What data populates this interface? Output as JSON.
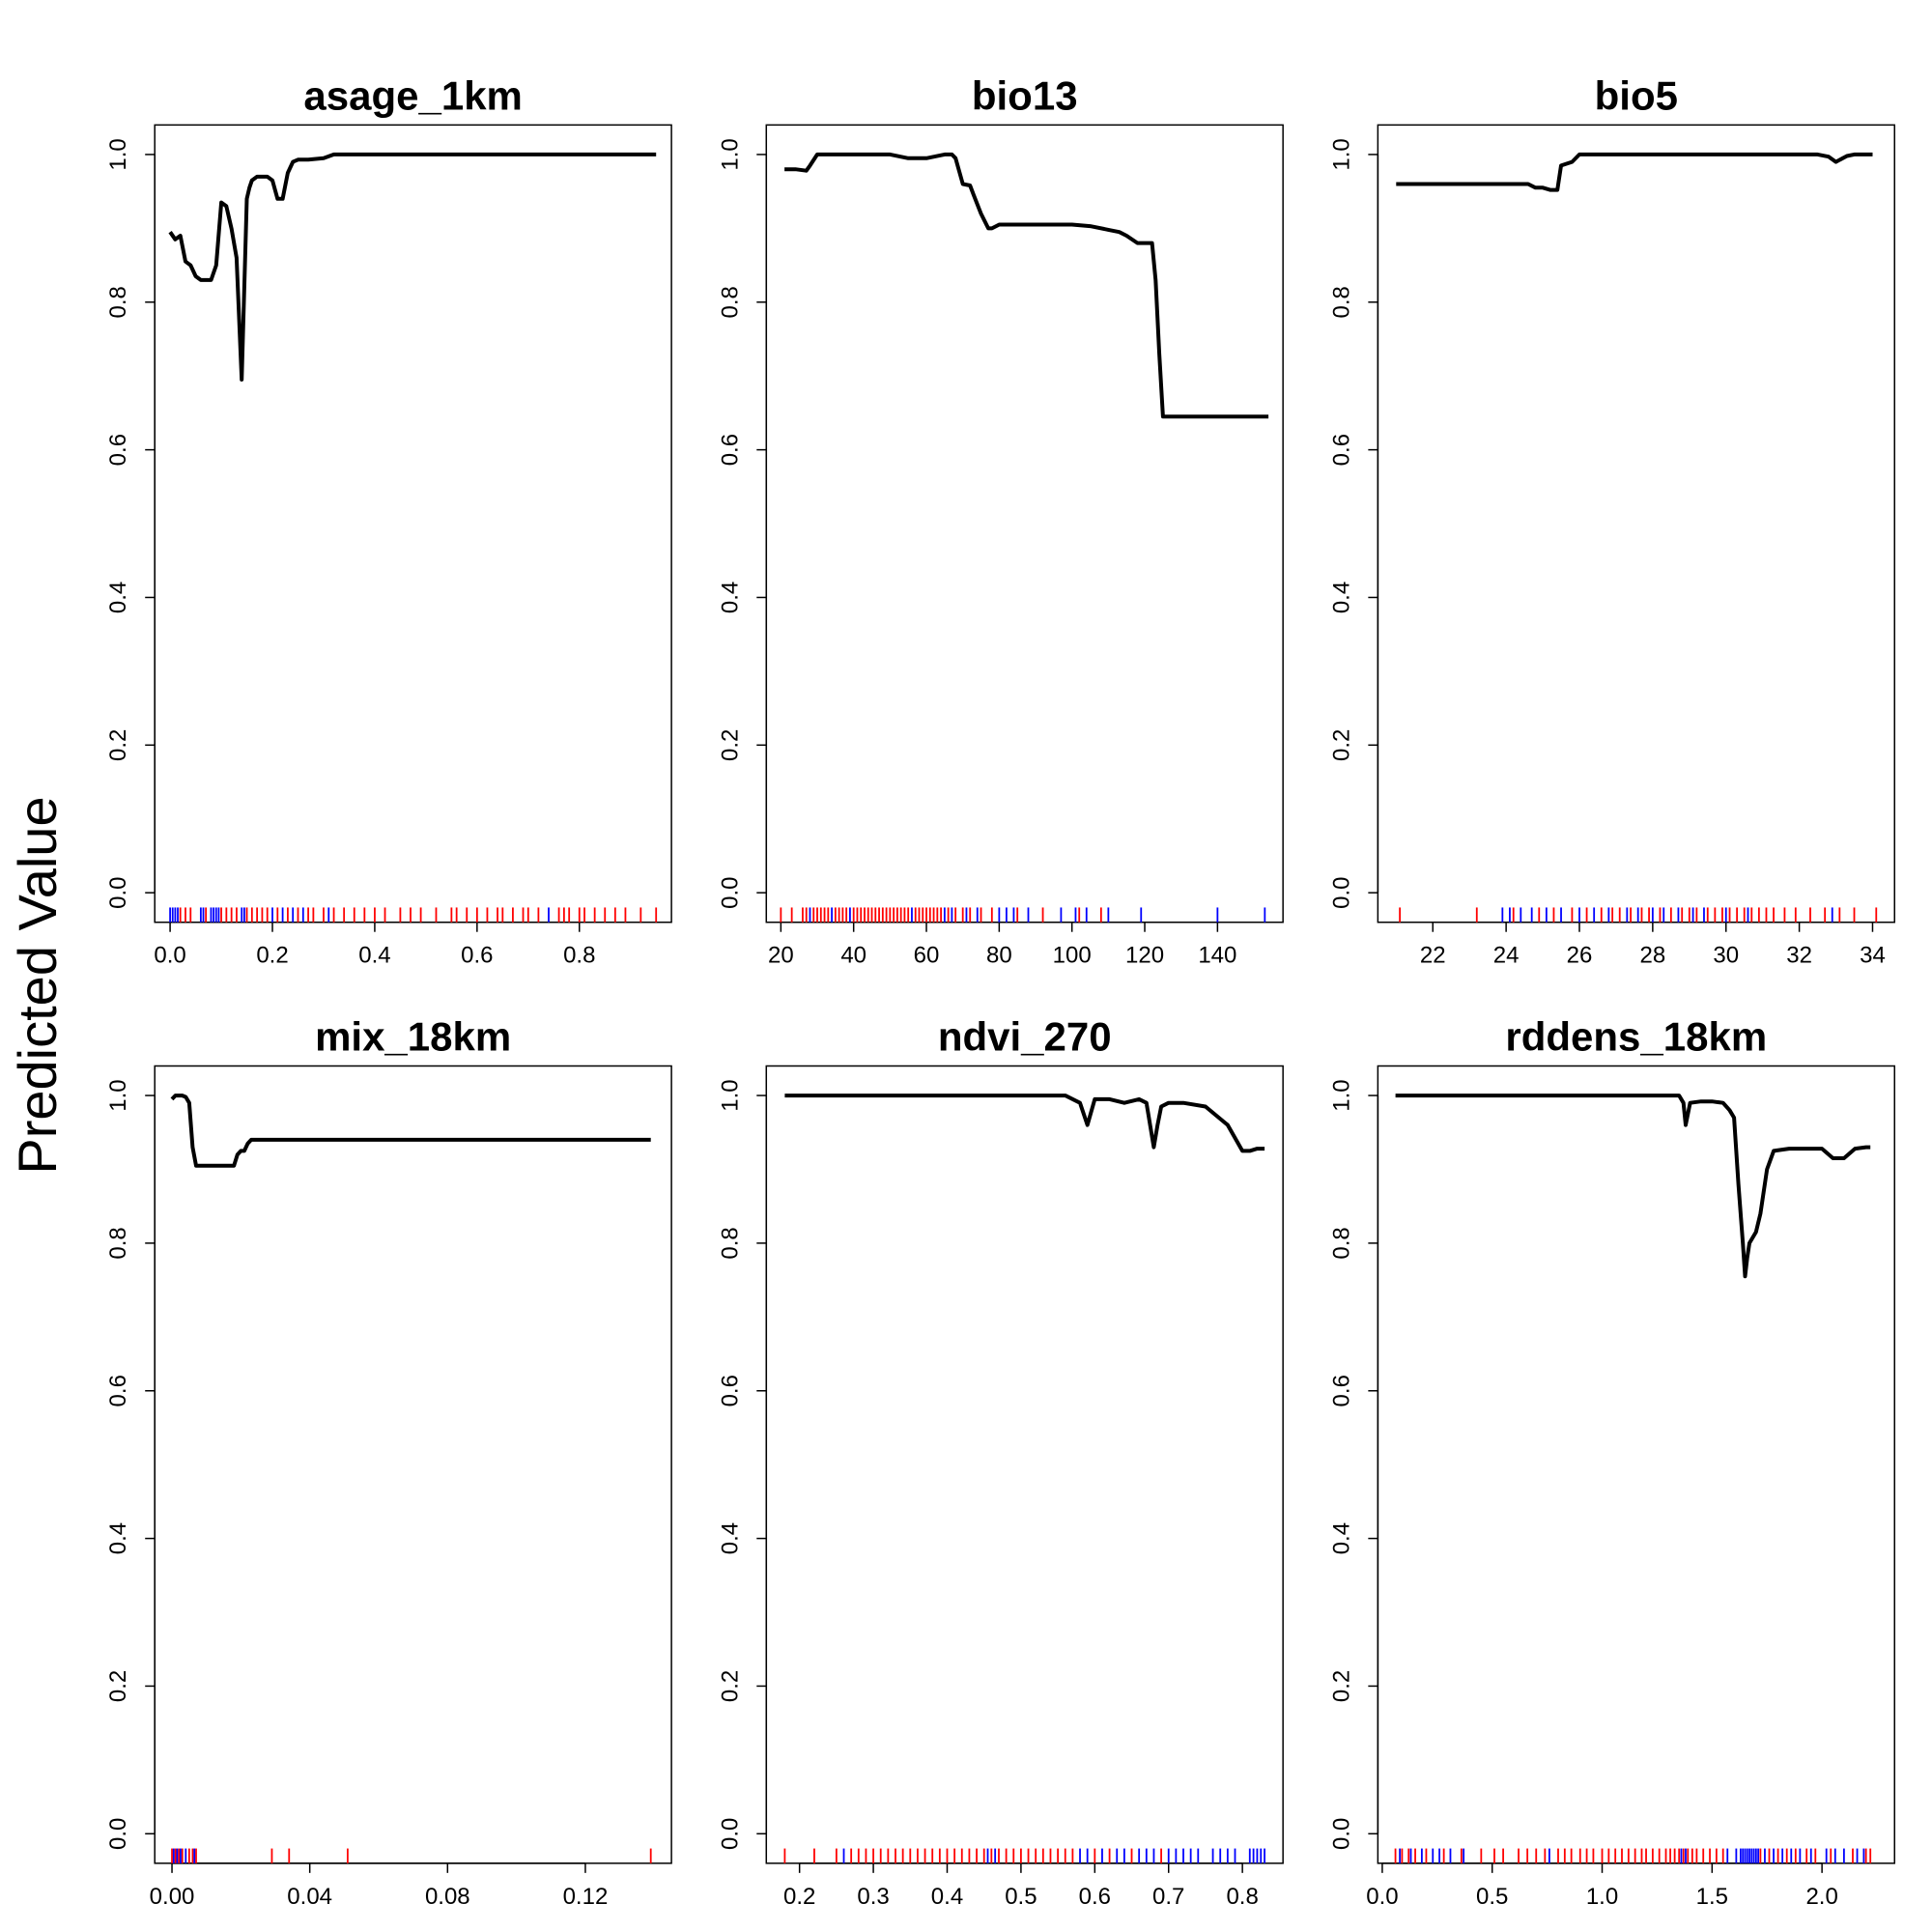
{
  "figure": {
    "ylabel": "Predicted Value"
  },
  "colors": {
    "curve": "#000000",
    "rug_presence": "#ff0000",
    "rug_absence": "#0000ff"
  },
  "chart_data": [
    {
      "type": "line",
      "title": "asage_1km",
      "xlim": [
        -0.03,
        0.98
      ],
      "ylim": [
        -0.04,
        1.04
      ],
      "xticks": [
        0.0,
        0.2,
        0.4,
        0.6,
        0.8
      ],
      "xtick_labels": [
        "0.0",
        "0.2",
        "0.4",
        "0.6",
        "0.8"
      ],
      "yticks": [
        0.0,
        0.2,
        0.4,
        0.6,
        0.8,
        1.0
      ],
      "ytick_labels": [
        "0.0",
        "0.2",
        "0.4",
        "0.6",
        "0.8",
        "1.0"
      ],
      "series": [
        {
          "x": [
            0.0,
            0.01,
            0.02,
            0.03,
            0.04,
            0.05,
            0.06,
            0.07,
            0.08,
            0.09,
            0.1,
            0.11,
            0.12,
            0.13,
            0.14,
            0.15,
            0.155,
            0.16,
            0.17,
            0.18,
            0.19,
            0.2,
            0.21,
            0.22,
            0.23,
            0.24,
            0.25,
            0.27,
            0.3,
            0.32,
            0.35,
            0.4,
            0.5,
            0.6,
            0.7,
            0.8,
            0.95
          ],
          "y": [
            0.895,
            0.885,
            0.89,
            0.855,
            0.85,
            0.835,
            0.83,
            0.83,
            0.83,
            0.85,
            0.935,
            0.93,
            0.9,
            0.86,
            0.695,
            0.94,
            0.955,
            0.965,
            0.97,
            0.97,
            0.97,
            0.965,
            0.94,
            0.94,
            0.975,
            0.99,
            0.993,
            0.993,
            0.995,
            1.0,
            1.0,
            1.0,
            1.0,
            1.0,
            1.0,
            1.0,
            1.0
          ]
        }
      ],
      "rug_red": [
        0.02,
        0.03,
        0.04,
        0.07,
        0.1,
        0.11,
        0.12,
        0.13,
        0.15,
        0.16,
        0.17,
        0.18,
        0.19,
        0.21,
        0.23,
        0.25,
        0.27,
        0.28,
        0.3,
        0.32,
        0.34,
        0.36,
        0.38,
        0.4,
        0.42,
        0.45,
        0.47,
        0.49,
        0.52,
        0.55,
        0.56,
        0.58,
        0.6,
        0.62,
        0.64,
        0.65,
        0.67,
        0.69,
        0.7,
        0.72,
        0.76,
        0.77,
        0.78,
        0.8,
        0.81,
        0.83,
        0.85,
        0.87,
        0.89,
        0.92,
        0.95
      ],
      "rug_blue": [
        0.0,
        0.005,
        0.01,
        0.015,
        0.06,
        0.065,
        0.08,
        0.085,
        0.09,
        0.095,
        0.14,
        0.145,
        0.2,
        0.22,
        0.24,
        0.26,
        0.31,
        0.74
      ]
    },
    {
      "type": "line",
      "title": "bio13",
      "xlim": [
        16,
        158
      ],
      "ylim": [
        -0.04,
        1.04
      ],
      "xticks": [
        20,
        40,
        60,
        80,
        100,
        120,
        140
      ],
      "xtick_labels": [
        "20",
        "40",
        "60",
        "80",
        "100",
        "120",
        "140"
      ],
      "yticks": [
        0.0,
        0.2,
        0.4,
        0.6,
        0.8,
        1.0
      ],
      "ytick_labels": [
        "0.0",
        "0.2",
        "0.4",
        "0.6",
        "0.8",
        "1.0"
      ],
      "series": [
        {
          "x": [
            21,
            24,
            27,
            28,
            30,
            35,
            40,
            45,
            50,
            55,
            60,
            65,
            67,
            68,
            70,
            72,
            73,
            75,
            77,
            78,
            80,
            85,
            90,
            95,
            100,
            105,
            110,
            113,
            115,
            118,
            120,
            122,
            123,
            124,
            125,
            130,
            140,
            150,
            154
          ],
          "y": [
            0.98,
            0.98,
            0.978,
            0.985,
            1.0,
            1.0,
            1.0,
            1.0,
            1.0,
            0.995,
            0.995,
            1.0,
            1.0,
            0.995,
            0.96,
            0.958,
            0.945,
            0.92,
            0.9,
            0.9,
            0.905,
            0.905,
            0.905,
            0.905,
            0.905,
            0.903,
            0.898,
            0.895,
            0.89,
            0.88,
            0.88,
            0.88,
            0.83,
            0.73,
            0.645,
            0.645,
            0.645,
            0.645,
            0.645
          ]
        }
      ],
      "rug_red": [
        20,
        23,
        26,
        27,
        29,
        30,
        31,
        32,
        33,
        35,
        36,
        37,
        38,
        40,
        41,
        42,
        43,
        44,
        45,
        46,
        47,
        48,
        49,
        50,
        51,
        52,
        53,
        54,
        55,
        57,
        58,
        59,
        60,
        61,
        62,
        63,
        64,
        66,
        68,
        70,
        72,
        75,
        78,
        85,
        92,
        102,
        108
      ],
      "rug_blue": [
        28,
        34,
        39,
        56,
        65,
        67,
        71,
        74,
        80,
        82,
        84,
        88,
        97,
        101,
        104,
        110,
        119,
        140,
        153
      ]
    },
    {
      "type": "line",
      "title": "bio5",
      "xlim": [
        20.5,
        34.6
      ],
      "ylim": [
        -0.04,
        1.04
      ],
      "xticks": [
        22,
        24,
        26,
        28,
        30,
        32,
        34
      ],
      "xtick_labels": [
        "22",
        "24",
        "26",
        "28",
        "30",
        "32",
        "34"
      ],
      "yticks": [
        0.0,
        0.2,
        0.4,
        0.6,
        0.8,
        1.0
      ],
      "ytick_labels": [
        "0.0",
        "0.2",
        "0.4",
        "0.6",
        "0.8",
        "1.0"
      ],
      "series": [
        {
          "x": [
            21.0,
            22.0,
            23.0,
            24.0,
            24.6,
            24.8,
            25.0,
            25.2,
            25.4,
            25.5,
            25.8,
            26.0,
            26.5,
            27.0,
            28.0,
            29.0,
            30.0,
            31.0,
            32.0,
            32.5,
            32.8,
            33.0,
            33.3,
            33.5,
            34.0
          ],
          "y": [
            0.96,
            0.96,
            0.96,
            0.96,
            0.96,
            0.955,
            0.955,
            0.952,
            0.952,
            0.985,
            0.99,
            1.0,
            1.0,
            1.0,
            1.0,
            1.0,
            1.0,
            1.0,
            1.0,
            1.0,
            0.997,
            0.99,
            0.998,
            1.0,
            1.0
          ]
        }
      ],
      "rug_red": [
        21.1,
        23.2,
        24.2,
        24.9,
        25.3,
        25.8,
        26.2,
        26.6,
        26.9,
        27.1,
        27.4,
        27.7,
        27.9,
        28.2,
        28.5,
        28.8,
        29.0,
        29.2,
        29.5,
        29.7,
        29.9,
        30.1,
        30.3,
        30.5,
        30.7,
        30.9,
        31.1,
        31.3,
        31.6,
        31.9,
        32.3,
        32.7,
        33.1,
        33.5,
        34.1
      ],
      "rug_blue": [
        23.9,
        24.1,
        24.4,
        24.7,
        25.1,
        25.5,
        26.0,
        26.4,
        26.8,
        27.3,
        27.6,
        28.0,
        28.3,
        28.7,
        29.1,
        29.4,
        30.0,
        30.6,
        32.9
      ]
    },
    {
      "type": "line",
      "title": "mix_18km",
      "xlim": [
        -0.005,
        0.145
      ],
      "ylim": [
        -0.04,
        1.04
      ],
      "xticks": [
        0.0,
        0.04,
        0.08,
        0.12
      ],
      "xtick_labels": [
        "0.00",
        "0.04",
        "0.08",
        "0.12"
      ],
      "yticks": [
        0.0,
        0.2,
        0.4,
        0.6,
        0.8,
        1.0
      ],
      "ytick_labels": [
        "0.0",
        "0.2",
        "0.4",
        "0.6",
        "0.8",
        "1.0"
      ],
      "series": [
        {
          "x": [
            0.0,
            0.001,
            0.003,
            0.004,
            0.005,
            0.006,
            0.007,
            0.01,
            0.015,
            0.018,
            0.019,
            0.02,
            0.021,
            0.022,
            0.023,
            0.03,
            0.05,
            0.08,
            0.1,
            0.12,
            0.139
          ],
          "y": [
            0.995,
            1.0,
            1.0,
            0.998,
            0.99,
            0.93,
            0.905,
            0.905,
            0.905,
            0.905,
            0.92,
            0.925,
            0.925,
            0.935,
            0.94,
            0.94,
            0.94,
            0.94,
            0.94,
            0.94,
            0.94
          ]
        }
      ],
      "rug_red": [
        0.0,
        0.001,
        0.002,
        0.003,
        0.005,
        0.006,
        0.007,
        0.029,
        0.034,
        0.051,
        0.139
      ],
      "rug_blue": [
        0.0005,
        0.0015,
        0.0025,
        0.004,
        0.0065
      ]
    },
    {
      "type": "line",
      "title": "ndvi_270",
      "xlim": [
        0.155,
        0.855
      ],
      "ylim": [
        -0.04,
        1.04
      ],
      "xticks": [
        0.2,
        0.3,
        0.4,
        0.5,
        0.6,
        0.7,
        0.8
      ],
      "xtick_labels": [
        "0.2",
        "0.3",
        "0.4",
        "0.5",
        "0.6",
        "0.7",
        "0.8"
      ],
      "yticks": [
        0.0,
        0.2,
        0.4,
        0.6,
        0.8,
        1.0
      ],
      "ytick_labels": [
        "0.0",
        "0.2",
        "0.4",
        "0.6",
        "0.8",
        "1.0"
      ],
      "series": [
        {
          "x": [
            0.18,
            0.25,
            0.3,
            0.4,
            0.5,
            0.56,
            0.58,
            0.59,
            0.6,
            0.62,
            0.64,
            0.66,
            0.67,
            0.68,
            0.685,
            0.69,
            0.7,
            0.72,
            0.75,
            0.78,
            0.8,
            0.81,
            0.82,
            0.83
          ],
          "y": [
            1.0,
            1.0,
            1.0,
            1.0,
            1.0,
            1.0,
            0.99,
            0.96,
            0.995,
            0.995,
            0.99,
            0.995,
            0.99,
            0.93,
            0.96,
            0.985,
            0.99,
            0.99,
            0.985,
            0.96,
            0.925,
            0.925,
            0.928,
            0.928
          ]
        }
      ],
      "rug_red": [
        0.18,
        0.22,
        0.25,
        0.27,
        0.28,
        0.29,
        0.3,
        0.31,
        0.32,
        0.33,
        0.34,
        0.35,
        0.36,
        0.37,
        0.38,
        0.39,
        0.4,
        0.41,
        0.42,
        0.43,
        0.44,
        0.45,
        0.46,
        0.47,
        0.48,
        0.49,
        0.5,
        0.51,
        0.52,
        0.53,
        0.54,
        0.55,
        0.56,
        0.57,
        0.6,
        0.62,
        0.65,
        0.69
      ],
      "rug_blue": [
        0.26,
        0.455,
        0.465,
        0.58,
        0.59,
        0.61,
        0.63,
        0.64,
        0.66,
        0.67,
        0.68,
        0.7,
        0.71,
        0.72,
        0.73,
        0.74,
        0.76,
        0.77,
        0.78,
        0.79,
        0.81,
        0.815,
        0.82,
        0.825,
        0.83
      ]
    },
    {
      "type": "line",
      "title": "rddens_18km",
      "xlim": [
        -0.02,
        2.33
      ],
      "ylim": [
        -0.04,
        1.04
      ],
      "xticks": [
        0.0,
        0.5,
        1.0,
        1.5,
        2.0
      ],
      "xtick_labels": [
        "0.0",
        "0.5",
        "1.0",
        "1.5",
        "2.0"
      ],
      "yticks": [
        0.0,
        0.2,
        0.4,
        0.6,
        0.8,
        1.0
      ],
      "ytick_labels": [
        "0.0",
        "0.2",
        "0.4",
        "0.6",
        "0.8",
        "1.0"
      ],
      "series": [
        {
          "x": [
            0.06,
            0.5,
            1.0,
            1.2,
            1.3,
            1.35,
            1.37,
            1.38,
            1.4,
            1.45,
            1.5,
            1.55,
            1.58,
            1.6,
            1.62,
            1.64,
            1.65,
            1.66,
            1.67,
            1.7,
            1.72,
            1.75,
            1.78,
            1.85,
            2.0,
            2.05,
            2.1,
            2.15,
            2.2,
            2.22
          ],
          "y": [
            1.0,
            1.0,
            1.0,
            1.0,
            1.0,
            1.0,
            0.99,
            0.96,
            0.99,
            0.992,
            0.992,
            0.99,
            0.98,
            0.97,
            0.88,
            0.8,
            0.755,
            0.78,
            0.8,
            0.815,
            0.84,
            0.9,
            0.925,
            0.928,
            0.928,
            0.915,
            0.915,
            0.928,
            0.93,
            0.93
          ]
        }
      ],
      "rug_red": [
        0.06,
        0.09,
        0.12,
        0.15,
        0.2,
        0.28,
        0.36,
        0.45,
        0.51,
        0.55,
        0.62,
        0.66,
        0.7,
        0.74,
        0.8,
        0.83,
        0.86,
        0.9,
        0.93,
        0.96,
        1.0,
        1.03,
        1.06,
        1.09,
        1.12,
        1.15,
        1.18,
        1.2,
        1.23,
        1.26,
        1.29,
        1.31,
        1.33,
        1.35,
        1.37,
        1.39,
        1.41,
        1.43,
        1.46,
        1.49,
        1.52,
        1.55,
        1.72,
        1.76,
        1.8,
        1.84,
        1.88,
        1.93,
        1.97,
        2.04,
        2.14,
        2.2,
        2.22
      ],
      "rug_blue": [
        0.08,
        0.13,
        0.18,
        0.23,
        0.26,
        0.31,
        0.37,
        0.76,
        1.36,
        1.38,
        1.57,
        1.61,
        1.63,
        1.64,
        1.65,
        1.66,
        1.67,
        1.68,
        1.69,
        1.7,
        1.71,
        1.74,
        1.78,
        1.82,
        1.86,
        1.9,
        1.95,
        2.02,
        2.06,
        2.1,
        2.16,
        2.19
      ]
    }
  ]
}
